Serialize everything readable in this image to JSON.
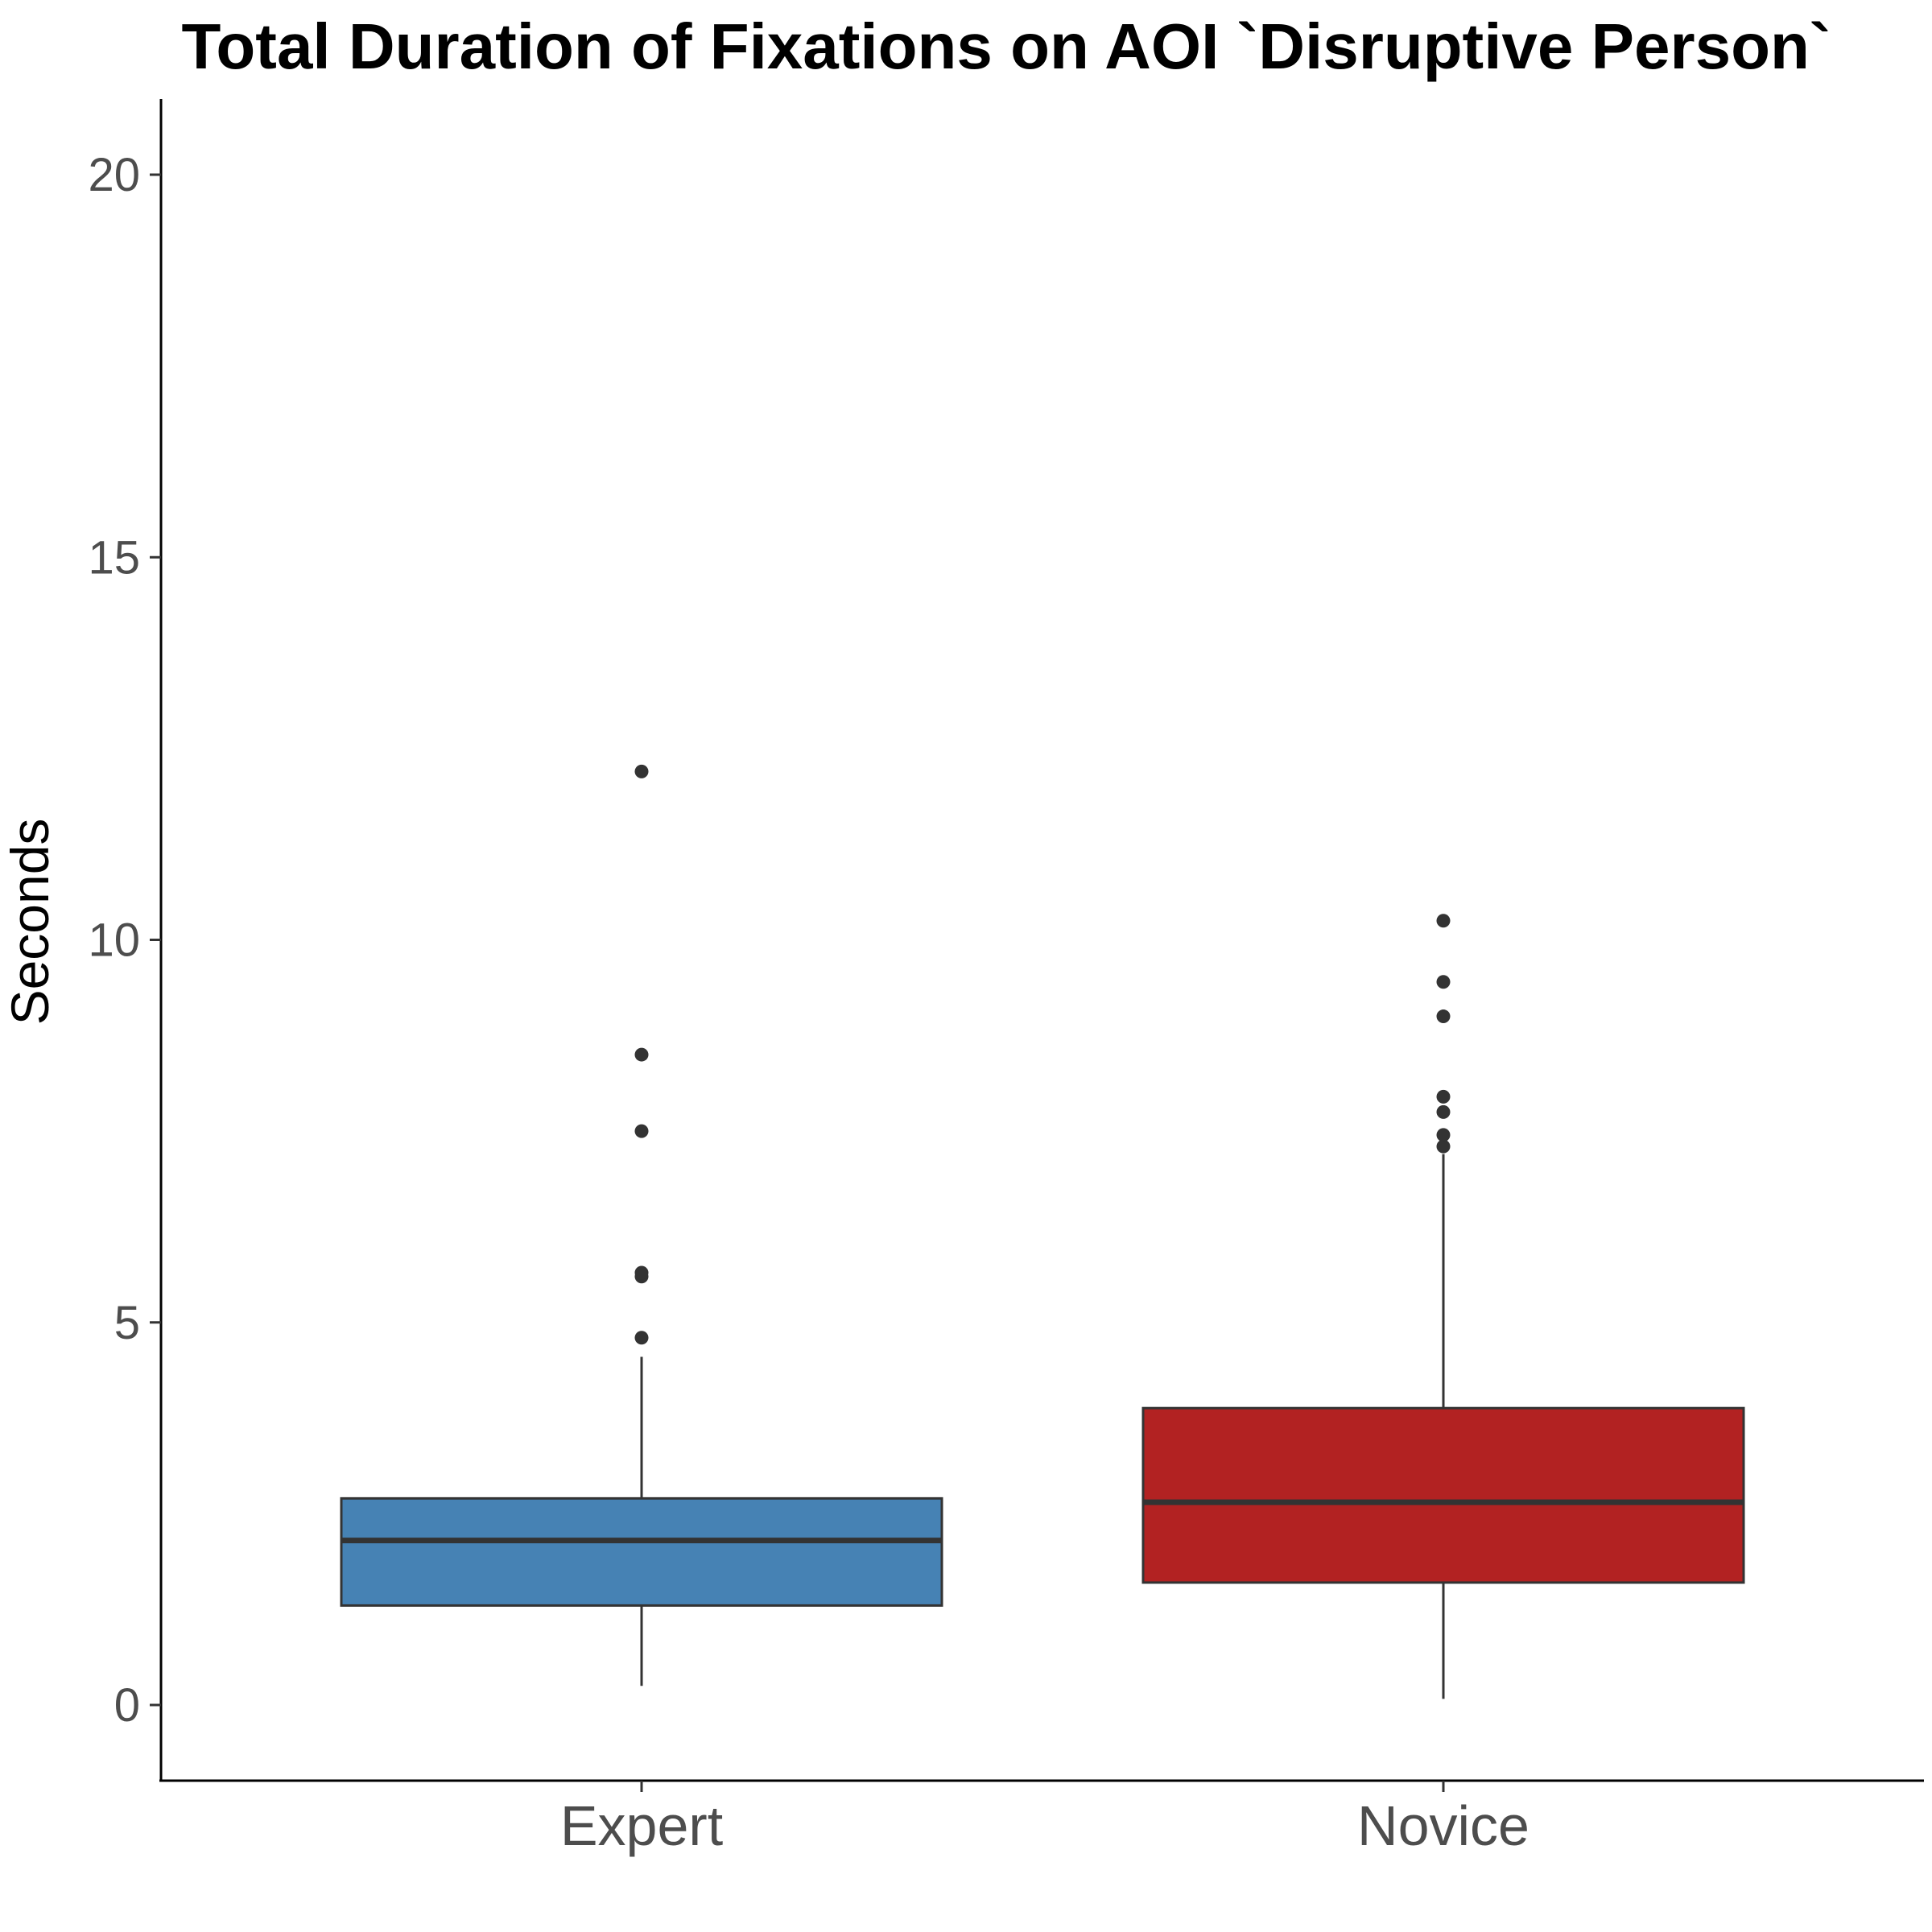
{
  "chart_data": {
    "type": "boxplot",
    "title": "Total Duration of Fixations on AOI `Disruptive Person`",
    "xlabel": "",
    "ylabel": "Seconds",
    "ylim": [
      -1,
      21
    ],
    "yticks": [
      0,
      5,
      10,
      15,
      20
    ],
    "grid": false,
    "legend": "none",
    "categories": [
      "Expert",
      "Novice"
    ],
    "boxes": [
      {
        "category": "Expert",
        "color": "#4682b4",
        "whisker_low": 0.25,
        "q1": 1.3,
        "median": 2.15,
        "q3": 2.7,
        "whisker_high": 4.55,
        "outliers": [
          4.8,
          5.6,
          5.65,
          7.5,
          8.5,
          12.2
        ]
      },
      {
        "category": "Novice",
        "color": "#b22222",
        "whisker_low": 0.08,
        "q1": 1.6,
        "median": 2.65,
        "q3": 3.88,
        "whisker_high": 7.2,
        "outliers": [
          7.3,
          7.45,
          7.75,
          7.95,
          9.0,
          9.45,
          10.25
        ]
      }
    ]
  }
}
